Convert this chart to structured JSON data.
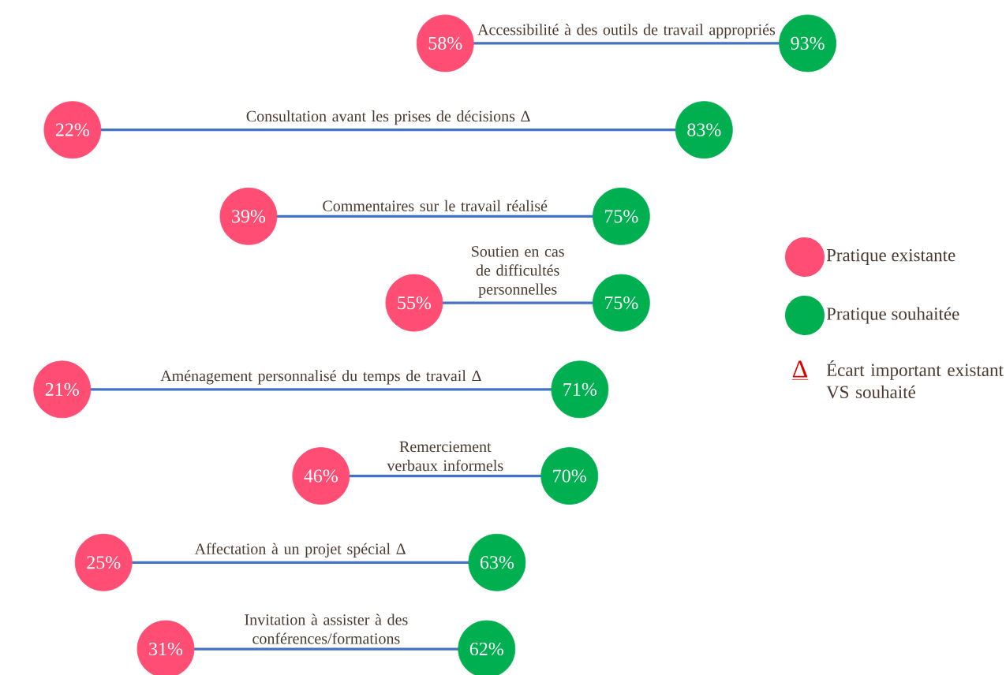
{
  "chart_data": {
    "type": "other",
    "categories": [
      "Accessibilité à des outils de travail appropriés",
      "Consultation avant les prises de décisions Δ",
      "Commentaires sur le travail réalisé",
      "Soutien en cas de difficultés personnelles",
      "Aménagement personnalisé du temps de travail Δ",
      "Remerciement verbaux informels",
      "Affectation à un projet spécial Δ",
      "Invitation à assister à des conférences/formations"
    ],
    "series": [
      {
        "name": "Pratique existante",
        "color": "#ff4d73",
        "values": [
          58,
          22,
          39,
          55,
          21,
          46,
          25,
          31
        ],
        "value_labels": [
          "58%",
          "22%",
          "39%",
          "55%",
          "21%",
          "46%",
          "25%",
          "31%"
        ]
      },
      {
        "name": "Pratique souhaitée",
        "color": "#00b050",
        "values": [
          93,
          83,
          75,
          75,
          71,
          70,
          63,
          62
        ],
        "value_labels": [
          "93%",
          "83%",
          "75%",
          "75%",
          "71%",
          "70%",
          "63%",
          "62%"
        ]
      }
    ],
    "legend": "right",
    "annotations": [
      "Δ",
      "Écart important existant VS souhaité"
    ]
  }
}
